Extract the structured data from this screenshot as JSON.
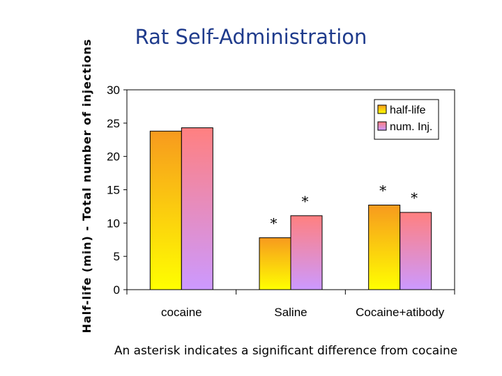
{
  "slide": {
    "title": "Rat Self-Administration",
    "caption": "An asterisk indicates a significant difference from cocaine"
  },
  "chart_data": {
    "type": "bar",
    "ylabel": "Half-life (min) - Total number of injections",
    "ylim": [
      0,
      30
    ],
    "yticks": [
      0,
      5,
      10,
      15,
      20,
      25,
      30
    ],
    "categories": [
      "cocaine",
      "Saline",
      "Cocaine+atibody"
    ],
    "series": [
      {
        "name": "half-life",
        "values": [
          23.8,
          7.8,
          12.7
        ],
        "significant": [
          false,
          true,
          true
        ],
        "gradient": [
          "#f79a1e",
          "#ffff00"
        ]
      },
      {
        "name": "num. Inj.",
        "values": [
          24.3,
          11.1,
          11.6
        ],
        "significant": [
          false,
          true,
          true
        ],
        "gradient": [
          "#ff8080",
          "#cc99ff"
        ]
      }
    ],
    "asterisk": "*",
    "legend": {
      "position": "top-right"
    }
  }
}
